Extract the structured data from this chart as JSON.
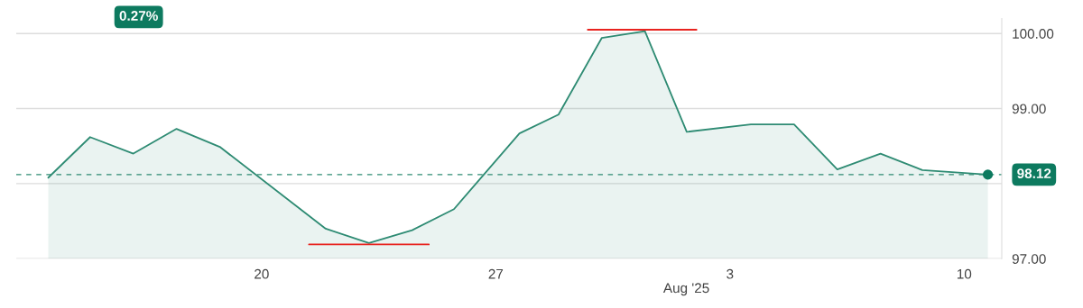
{
  "chart_data": {
    "type": "area",
    "xlabel": "Aug '25",
    "x": [
      "2025-07-13T15:00",
      "2025-07-14T21:00",
      "2025-07-16T04:00",
      "2025-07-17T11:00",
      "2025-07-18T18:00",
      "2025-07-21T22:00",
      "2025-07-23T05:00",
      "2025-07-24T12:00",
      "2025-07-25T18:00",
      "2025-07-27T17:00",
      "2025-07-28T21:00",
      "2025-07-30T04:00",
      "2025-07-31T11:00",
      "2025-08-01T17:00",
      "2025-08-03T15:00",
      "2025-08-04T22:00",
      "2025-08-06T05:00",
      "2025-08-07T12:00",
      "2025-08-08T18:00",
      "2025-08-10T17:00"
    ],
    "series": [
      {
        "color": "#2e8b73",
        "values": [
          98.08,
          98.62,
          98.4,
          98.73,
          98.49,
          97.4,
          97.21,
          97.38,
          97.66,
          98.67,
          98.92,
          99.94,
          100.03,
          98.69,
          98.79,
          98.79,
          98.19,
          98.4,
          98.18,
          98.12
        ]
      },
      {
        "type": "line",
        "color": "#e8231f",
        "x": [
          "2025-07-21T10:00",
          "2025-07-25T00:00"
        ],
        "values": [
          97.19,
          97.19
        ]
      },
      {
        "type": "line",
        "color": "#e8231f",
        "x": [
          "2025-07-29T18:00",
          "2025-08-02T00:00"
        ],
        "values": [
          100.05,
          100.05
        ]
      }
    ],
    "xlim": [
      "2025-07-12T16:00",
      "2025-08-11T03:00"
    ],
    "xticks": [
      {
        "value": "2025-07-20",
        "label": "20"
      },
      {
        "value": "2025-07-27",
        "label": "27"
      },
      {
        "value": "2025-08-03",
        "label": "3"
      },
      {
        "value": "2025-08-10",
        "label": "10"
      }
    ],
    "ylim": [
      97,
      100.2
    ],
    "yticks": [
      {
        "value": 97,
        "label": "97.00"
      },
      {
        "value": 98,
        "label": null
      },
      {
        "value": 99,
        "label": "99.00"
      },
      {
        "value": 100,
        "label": "100.00"
      }
    ],
    "grid": "y",
    "ref_lines": [
      {
        "axis": "y",
        "value": 98.12,
        "color": "#2e8b73",
        "line_style": "dashed"
      }
    ],
    "annotations": [
      "0.27%",
      {
        "text": "98.12",
        "x": "2025-08-10T17:00",
        "y": 98.12
      }
    ]
  }
}
